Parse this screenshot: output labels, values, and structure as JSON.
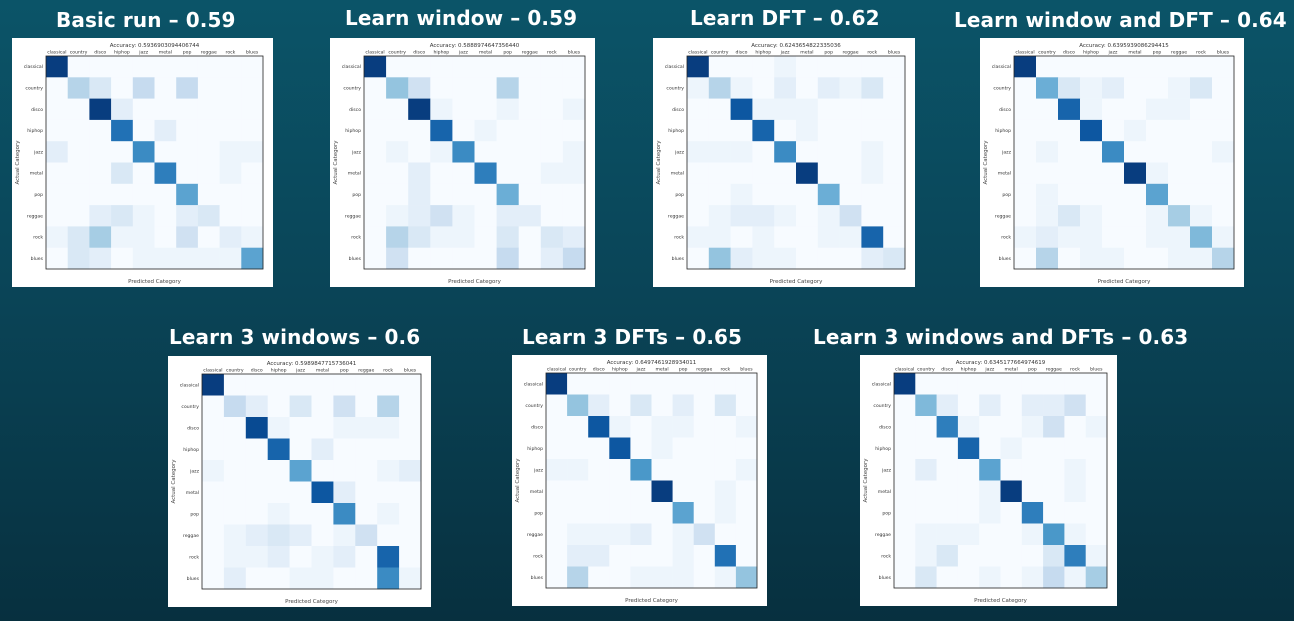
{
  "chart_data": [
    {
      "type": "heatmap",
      "panel_title": "Basic run – 0.59",
      "title": "Accuracy: 0.5936903094406744",
      "xlabel": "Predicted Category",
      "ylabel": "Actual Category",
      "x_categories": [
        "classical",
        "country",
        "disco",
        "hiphop",
        "jazz",
        "metal",
        "pop",
        "reggae",
        "rock",
        "blues"
      ],
      "y_categories": [
        "classical",
        "country",
        "disco",
        "hiphop",
        "jazz",
        "metal",
        "pop",
        "reggae",
        "rock",
        "blues"
      ],
      "colormap": "Blues",
      "values": [
        [
          0.95,
          0,
          0,
          0,
          0,
          0,
          0,
          0,
          0,
          0
        ],
        [
          0,
          0.3,
          0.15,
          0,
          0.25,
          0,
          0.25,
          0,
          0,
          0
        ],
        [
          0,
          0,
          0.95,
          0.1,
          0,
          0,
          0,
          0,
          0,
          0
        ],
        [
          0,
          0,
          0,
          0.75,
          0,
          0.1,
          0,
          0,
          0,
          0
        ],
        [
          0.1,
          0,
          0,
          0,
          0.65,
          0,
          0,
          0,
          0.05,
          0.05
        ],
        [
          0,
          0,
          0,
          0.15,
          0,
          0.7,
          0,
          0,
          0.05,
          0
        ],
        [
          0,
          0,
          0,
          0,
          0,
          0,
          0.55,
          0,
          0,
          0
        ],
        [
          0,
          0,
          0.1,
          0.15,
          0.05,
          0,
          0.1,
          0.15,
          0,
          0
        ],
        [
          0.05,
          0.15,
          0.35,
          0.05,
          0.05,
          0,
          0.2,
          0,
          0.1,
          0.05
        ],
        [
          0,
          0.15,
          0.1,
          0,
          0.05,
          0.05,
          0.05,
          0.05,
          0.05,
          0.55
        ]
      ]
    },
    {
      "type": "heatmap",
      "panel_title": "Learn window – 0.59",
      "title": "Accuracy: 0.5888974647356440",
      "xlabel": "Predicted Category",
      "ylabel": "Actual Category",
      "x_categories": [
        "classical",
        "country",
        "disco",
        "hiphop",
        "jazz",
        "metal",
        "pop",
        "reggae",
        "rock",
        "blues"
      ],
      "y_categories": [
        "classical",
        "country",
        "disco",
        "hiphop",
        "jazz",
        "metal",
        "pop",
        "reggae",
        "rock",
        "blues"
      ],
      "colormap": "Blues",
      "values": [
        [
          0.95,
          0,
          0,
          0,
          0,
          0,
          0,
          0,
          0,
          0
        ],
        [
          0,
          0.4,
          0.2,
          0,
          0,
          0,
          0.3,
          0,
          0,
          0
        ],
        [
          0,
          0,
          0.95,
          0.05,
          0,
          0,
          0.05,
          0,
          0,
          0.05
        ],
        [
          0,
          0,
          0,
          0.8,
          0,
          0.05,
          0,
          0,
          0,
          0
        ],
        [
          0,
          0.05,
          0,
          0.05,
          0.65,
          0,
          0,
          0,
          0,
          0.05
        ],
        [
          0,
          0,
          0.1,
          0,
          0,
          0.7,
          0,
          0,
          0.05,
          0.05
        ],
        [
          0,
          0,
          0.1,
          0,
          0,
          0,
          0.5,
          0,
          0,
          0
        ],
        [
          0,
          0.05,
          0.1,
          0.2,
          0.05,
          0,
          0.1,
          0.1,
          0,
          0
        ],
        [
          0,
          0.3,
          0.15,
          0.05,
          0.05,
          0,
          0.15,
          0,
          0.15,
          0.1
        ],
        [
          0,
          0.2,
          0,
          0,
          0,
          0,
          0.25,
          0,
          0.1,
          0.25
        ]
      ]
    },
    {
      "type": "heatmap",
      "panel_title": "Learn DFT – 0.62",
      "title": "Accuracy: 0.6243654822335036",
      "xlabel": "Predicted Category",
      "ylabel": "Actual Category",
      "x_categories": [
        "classical",
        "country",
        "disco",
        "hiphop",
        "jazz",
        "metal",
        "pop",
        "reggae",
        "rock",
        "blues"
      ],
      "y_categories": [
        "classical",
        "country",
        "disco",
        "hiphop",
        "jazz",
        "metal",
        "pop",
        "reggae",
        "rock",
        "blues"
      ],
      "colormap": "Blues",
      "values": [
        [
          0.95,
          0,
          0,
          0,
          0.05,
          0,
          0,
          0,
          0,
          0
        ],
        [
          0.05,
          0.3,
          0.05,
          0,
          0.1,
          0,
          0.1,
          0.05,
          0.15,
          0
        ],
        [
          0,
          0,
          0.85,
          0.05,
          0.05,
          0.05,
          0,
          0,
          0,
          0
        ],
        [
          0,
          0,
          0,
          0.8,
          0,
          0.05,
          0,
          0,
          0,
          0
        ],
        [
          0.05,
          0.05,
          0.05,
          0,
          0.65,
          0,
          0,
          0,
          0.05,
          0
        ],
        [
          0,
          0,
          0,
          0,
          0,
          0.95,
          0,
          0,
          0.05,
          0
        ],
        [
          0,
          0,
          0.05,
          0,
          0,
          0,
          0.5,
          0,
          0,
          0
        ],
        [
          0,
          0.05,
          0.1,
          0.1,
          0.05,
          0,
          0.05,
          0.2,
          0,
          0
        ],
        [
          0.05,
          0.05,
          0,
          0.05,
          0,
          0,
          0.05,
          0.05,
          0.8,
          0
        ],
        [
          0,
          0.4,
          0.1,
          0.05,
          0.05,
          0,
          0,
          0,
          0.1,
          0.15
        ]
      ]
    },
    {
      "type": "heatmap",
      "panel_title": "Learn window and DFT – 0.64",
      "title": "Accuracy: 0.6395939086294415",
      "xlabel": "Predicted Category",
      "ylabel": "Actual Category",
      "x_categories": [
        "classical",
        "country",
        "disco",
        "hiphop",
        "jazz",
        "metal",
        "pop",
        "reggae",
        "rock",
        "blues"
      ],
      "y_categories": [
        "classical",
        "country",
        "disco",
        "hiphop",
        "jazz",
        "metal",
        "pop",
        "reggae",
        "rock",
        "blues"
      ],
      "colormap": "Blues",
      "values": [
        [
          0.95,
          0,
          0,
          0,
          0,
          0,
          0,
          0,
          0,
          0
        ],
        [
          0,
          0.5,
          0.15,
          0.05,
          0.1,
          0,
          0,
          0.05,
          0.15,
          0
        ],
        [
          0,
          0,
          0.8,
          0.05,
          0,
          0,
          0.05,
          0.05,
          0,
          0
        ],
        [
          0,
          0,
          0,
          0.85,
          0,
          0.05,
          0,
          0,
          0,
          0
        ],
        [
          0,
          0.05,
          0,
          0,
          0.65,
          0,
          0,
          0,
          0,
          0.05
        ],
        [
          0,
          0,
          0,
          0,
          0,
          0.95,
          0.05,
          0,
          0,
          0
        ],
        [
          0,
          0.05,
          0,
          0,
          0,
          0,
          0.55,
          0,
          0,
          0
        ],
        [
          0,
          0.05,
          0.15,
          0.05,
          0,
          0,
          0.05,
          0.35,
          0.05,
          0
        ],
        [
          0.05,
          0.1,
          0.05,
          0.05,
          0,
          0,
          0.05,
          0.05,
          0.45,
          0.05
        ],
        [
          0,
          0.3,
          0,
          0.05,
          0.05,
          0,
          0,
          0.05,
          0.05,
          0.3
        ]
      ]
    },
    {
      "type": "heatmap",
      "panel_title": "Learn 3 windows – 0.6",
      "title": "Accuracy: 0.5989847715736041",
      "xlabel": "Predicted Category",
      "ylabel": "Actual Category",
      "x_categories": [
        "classical",
        "country",
        "disco",
        "hiphop",
        "jazz",
        "metal",
        "pop",
        "reggae",
        "rock",
        "blues"
      ],
      "y_categories": [
        "classical",
        "country",
        "disco",
        "hiphop",
        "jazz",
        "metal",
        "pop",
        "reggae",
        "rock",
        "blues"
      ],
      "colormap": "Blues",
      "values": [
        [
          0.95,
          0,
          0,
          0,
          0,
          0,
          0,
          0,
          0,
          0
        ],
        [
          0,
          0.25,
          0.1,
          0,
          0.15,
          0,
          0.2,
          0,
          0.3,
          0
        ],
        [
          0,
          0,
          0.9,
          0.05,
          0,
          0,
          0.05,
          0.05,
          0.05,
          0
        ],
        [
          0,
          0,
          0,
          0.8,
          0,
          0.1,
          0,
          0,
          0,
          0
        ],
        [
          0.05,
          0,
          0,
          0,
          0.55,
          0,
          0,
          0,
          0.05,
          0.1
        ],
        [
          0,
          0,
          0,
          0,
          0,
          0.85,
          0.1,
          0,
          0,
          0
        ],
        [
          0,
          0,
          0,
          0.05,
          0,
          0,
          0.65,
          0,
          0.05,
          0
        ],
        [
          0,
          0.05,
          0.1,
          0.15,
          0.1,
          0,
          0.05,
          0.2,
          0,
          0
        ],
        [
          0,
          0.05,
          0.05,
          0.1,
          0,
          0.05,
          0.1,
          0,
          0.8,
          0
        ],
        [
          0,
          0.1,
          0,
          0,
          0.05,
          0.05,
          0,
          0,
          0.65,
          0.05
        ]
      ]
    },
    {
      "type": "heatmap",
      "panel_title": "Learn 3 DFTs – 0.65",
      "title": "Accuracy: 0.6497461928934011",
      "xlabel": "Predicted Category",
      "ylabel": "Actual Category",
      "x_categories": [
        "classical",
        "country",
        "disco",
        "hiphop",
        "jazz",
        "metal",
        "pop",
        "reggae",
        "rock",
        "blues"
      ],
      "y_categories": [
        "classical",
        "country",
        "disco",
        "hiphop",
        "jazz",
        "metal",
        "pop",
        "reggae",
        "rock",
        "blues"
      ],
      "colormap": "Blues",
      "values": [
        [
          0.95,
          0,
          0,
          0,
          0,
          0,
          0,
          0,
          0,
          0
        ],
        [
          0,
          0.4,
          0.1,
          0,
          0.15,
          0,
          0.1,
          0,
          0.15,
          0
        ],
        [
          0,
          0,
          0.85,
          0.05,
          0,
          0.05,
          0.05,
          0,
          0,
          0.05
        ],
        [
          0,
          0,
          0,
          0.85,
          0,
          0.05,
          0,
          0,
          0,
          0
        ],
        [
          0.05,
          0.05,
          0,
          0,
          0.6,
          0,
          0,
          0,
          0,
          0.05
        ],
        [
          0,
          0,
          0,
          0,
          0,
          0.95,
          0,
          0,
          0.05,
          0
        ],
        [
          0,
          0,
          0,
          0,
          0,
          0,
          0.55,
          0,
          0.05,
          0
        ],
        [
          0,
          0.05,
          0.05,
          0.05,
          0.1,
          0,
          0.05,
          0.2,
          0,
          0
        ],
        [
          0,
          0.1,
          0.1,
          0,
          0,
          0,
          0.05,
          0,
          0.75,
          0
        ],
        [
          0,
          0.3,
          0,
          0,
          0.05,
          0.05,
          0.05,
          0,
          0.05,
          0.4
        ]
      ]
    },
    {
      "type": "heatmap",
      "panel_title": "Learn 3 windows and DFTs – 0.63",
      "title": "Accuracy: 0.6345177664974619",
      "xlabel": "Predicted Category",
      "ylabel": "Actual Category",
      "x_categories": [
        "classical",
        "country",
        "disco",
        "hiphop",
        "jazz",
        "metal",
        "pop",
        "reggae",
        "rock",
        "blues"
      ],
      "y_categories": [
        "classical",
        "country",
        "disco",
        "hiphop",
        "jazz",
        "metal",
        "pop",
        "reggae",
        "rock",
        "blues"
      ],
      "colormap": "Blues",
      "values": [
        [
          0.95,
          0,
          0,
          0,
          0,
          0,
          0,
          0,
          0,
          0
        ],
        [
          0,
          0.45,
          0.1,
          0,
          0.1,
          0,
          0.1,
          0.1,
          0.2,
          0
        ],
        [
          0,
          0,
          0.7,
          0.05,
          0,
          0,
          0.05,
          0.2,
          0,
          0.05
        ],
        [
          0,
          0,
          0,
          0.8,
          0,
          0.05,
          0,
          0,
          0,
          0
        ],
        [
          0,
          0.1,
          0,
          0,
          0.55,
          0,
          0,
          0,
          0.05,
          0
        ],
        [
          0,
          0,
          0,
          0,
          0.05,
          0.95,
          0,
          0,
          0.05,
          0
        ],
        [
          0,
          0,
          0,
          0,
          0.05,
          0,
          0.7,
          0,
          0,
          0
        ],
        [
          0,
          0.05,
          0.05,
          0.05,
          0,
          0,
          0.05,
          0.6,
          0.05,
          0
        ],
        [
          0,
          0.05,
          0.15,
          0,
          0,
          0,
          0,
          0.15,
          0.7,
          0.05
        ],
        [
          0,
          0.15,
          0,
          0,
          0.05,
          0,
          0.05,
          0.25,
          0.05,
          0.35
        ]
      ]
    }
  ]
}
